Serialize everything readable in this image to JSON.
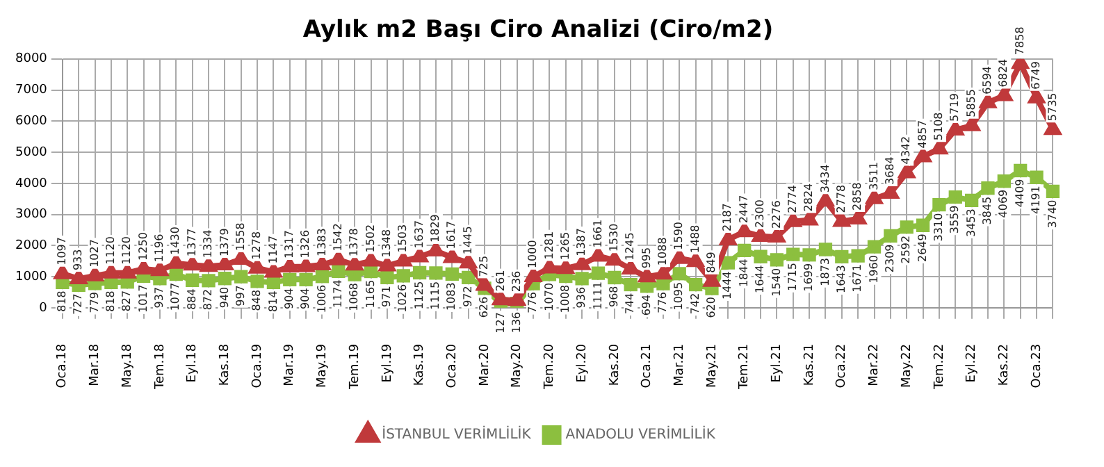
{
  "chart_data": {
    "type": "line",
    "title": "Aylık m2 Başı Ciro Analizi (Ciro/m2)",
    "categories": [
      "Oca.18",
      null,
      "Mar.18",
      null,
      "May.18",
      null,
      "Tem.18",
      null,
      "Eyl.18",
      null,
      "Kas.18",
      null,
      "Oca.19",
      null,
      "Mar.19",
      null,
      "May.19",
      null,
      "Tem.19",
      null,
      "Eyl.19",
      null,
      "Kas.19",
      null,
      "Oca.20",
      null,
      "Mar.20",
      null,
      "May.20",
      null,
      "Tem.20",
      null,
      "Eyl.20",
      null,
      "Kas.20",
      null,
      "Oca.21",
      null,
      "Mar.21",
      null,
      "May.21",
      null,
      "Tem.21",
      null,
      "Eyl.21",
      null,
      "Kas.21",
      null,
      "Oca.22",
      null,
      "Mar.22",
      null,
      "May.22",
      null,
      "Tem.22",
      null,
      "Eyl.22",
      null,
      "Kas.22",
      null,
      "Oca.23",
      null
    ],
    "series": [
      {
        "name": "İSTANBUL VERİMLİLİK",
        "color": "#c0393b",
        "marker": "triangle",
        "values": [
          1097,
          933,
          1027,
          1120,
          1120,
          1250,
          1196,
          1430,
          1377,
          1334,
          1379,
          1558,
          1278,
          1147,
          1317,
          1326,
          1383,
          1542,
          1378,
          1502,
          1348,
          1503,
          1637,
          1829,
          1617,
          1445,
          725,
          261,
          236,
          1000,
          1281,
          1265,
          1387,
          1661,
          1530,
          1245,
          995,
          1088,
          1590,
          1488,
          849,
          2187,
          2447,
          2300,
          2276,
          2774,
          2824,
          3434,
          2778,
          2858,
          3511,
          3684,
          4342,
          4857,
          5108,
          5719,
          5855,
          6594,
          6824,
          7858,
          6749,
          5735
        ]
      },
      {
        "name": "ANADOLU VERİMLİLİK",
        "color": "#8cbf3f",
        "marker": "square",
        "values": [
          818,
          727,
          779,
          818,
          827,
          1017,
          937,
          1077,
          884,
          872,
          940,
          997,
          848,
          814,
          904,
          904,
          1006,
          1174,
          1068,
          1165,
          971,
          1026,
          1125,
          1115,
          1083,
          972,
          626,
          127,
          136,
          776,
          1070,
          1008,
          936,
          1111,
          968,
          744,
          694,
          776,
          1095,
          742,
          620,
          1444,
          1844,
          1644,
          1540,
          1715,
          1699,
          1873,
          1643,
          1671,
          1960,
          2309,
          2592,
          2649,
          3310,
          3559,
          3453,
          3845,
          4069,
          4409,
          4191,
          3740
        ]
      }
    ],
    "ylim": [
      0,
      8000
    ],
    "yticks": [
      0,
      1000,
      2000,
      3000,
      4000,
      5000,
      6000,
      7000,
      8000
    ],
    "grid": true,
    "legend": "bottom",
    "data_labels": true,
    "line_style": "solid"
  }
}
